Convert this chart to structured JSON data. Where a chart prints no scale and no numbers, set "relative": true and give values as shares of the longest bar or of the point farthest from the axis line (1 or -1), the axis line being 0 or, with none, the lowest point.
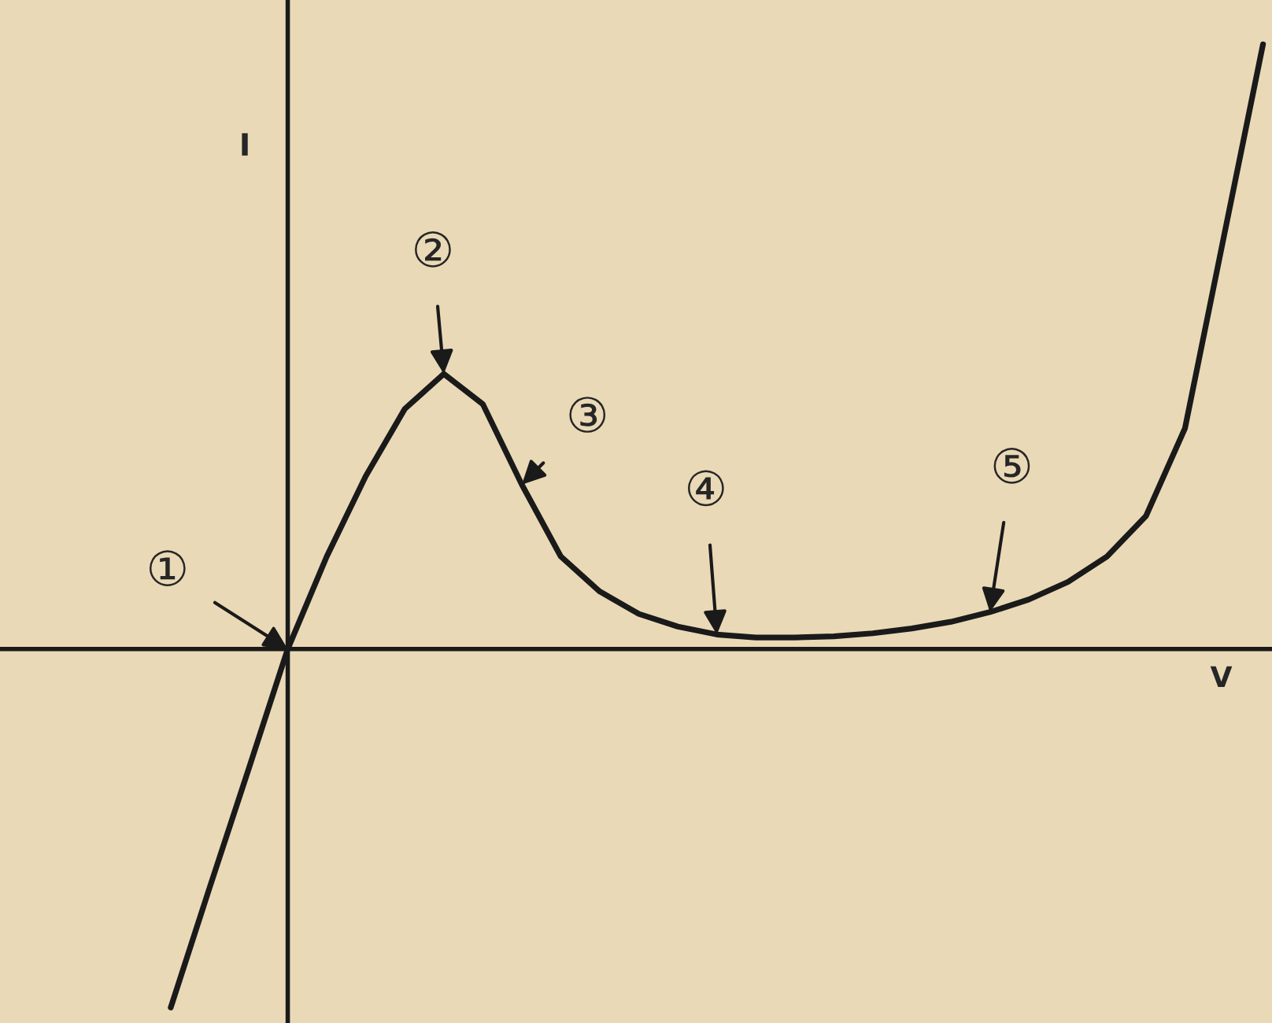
{
  "chart_data": {
    "type": "line",
    "relative": true,
    "xlabel": "V",
    "ylabel": "I",
    "color": "#1a1a1a",
    "marker": "none",
    "line_style": "solid",
    "legend": false,
    "categories": [
      null,
      null,
      null,
      null,
      null,
      null,
      null,
      null,
      null,
      null,
      null,
      null,
      null,
      null,
      null,
      null,
      null,
      null,
      null,
      null,
      null,
      null,
      null,
      null,
      null,
      null,
      null,
      null,
      null
    ],
    "values": [
      -0.593,
      -0.394,
      -0.198,
      0,
      0.153,
      0.286,
      0.397,
      0.455,
      0.405,
      0.272,
      0.153,
      0.095,
      0.058,
      0.037,
      0.024,
      0.019,
      0.019,
      0.021,
      0.026,
      0.034,
      0.045,
      0.061,
      0.082,
      0.111,
      0.153,
      0.22,
      0.365,
      0.683,
      1.0
    ],
    "annotations": [
      "①",
      "②",
      "③",
      "④",
      "⑤"
    ]
  }
}
